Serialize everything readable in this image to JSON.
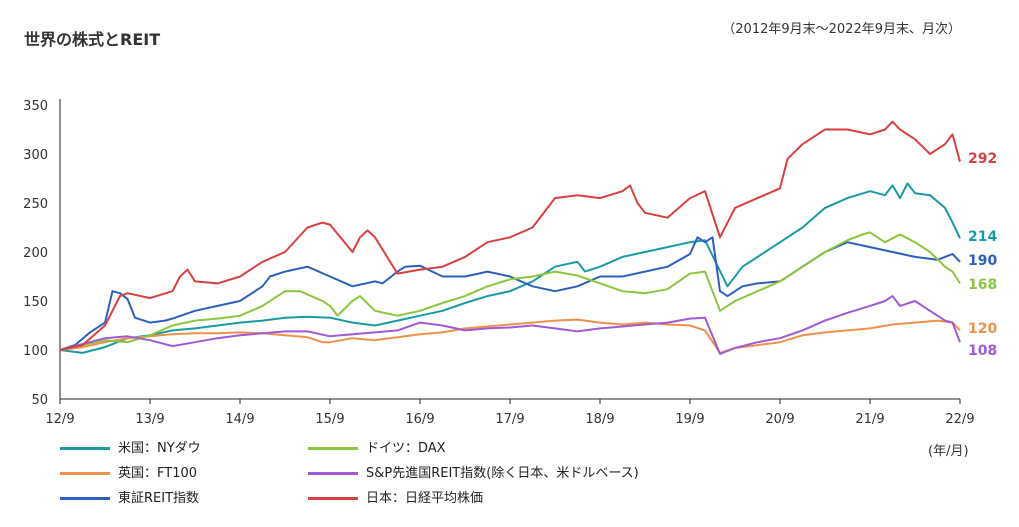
{
  "header": {
    "title": "世界の株式とREIT",
    "period": "（2012年9月末～2022年9月末、月次）"
  },
  "unit_label": "(年/月)",
  "chart_data": {
    "type": "line",
    "title": "世界の株式とREIT",
    "xlabel": "(年/月)",
    "ylabel": "",
    "ylim": [
      50,
      350
    ],
    "yticks": [
      50,
      100,
      150,
      200,
      250,
      300,
      350
    ],
    "xticks": [
      "12/9",
      "13/9",
      "14/9",
      "15/9",
      "16/9",
      "17/9",
      "18/9",
      "19/9",
      "20/9",
      "21/9",
      "22/9"
    ],
    "x_start": "2012-09",
    "x_end": "2022-09",
    "grid": false,
    "legend": "bottom",
    "series": [
      {
        "name": "米国：NYダウ",
        "color": "#1a9aa5",
        "end_label": "214",
        "points": [
          [
            0,
            100
          ],
          [
            3,
            97
          ],
          [
            6,
            103
          ],
          [
            9,
            112
          ],
          [
            12,
            115
          ],
          [
            15,
            120
          ],
          [
            18,
            122
          ],
          [
            21,
            125
          ],
          [
            24,
            128
          ],
          [
            27,
            130
          ],
          [
            30,
            133
          ],
          [
            33,
            134
          ],
          [
            36,
            133
          ],
          [
            39,
            128
          ],
          [
            42,
            125
          ],
          [
            45,
            130
          ],
          [
            48,
            135
          ],
          [
            51,
            140
          ],
          [
            54,
            148
          ],
          [
            57,
            155
          ],
          [
            60,
            160
          ],
          [
            63,
            170
          ],
          [
            66,
            185
          ],
          [
            69,
            190
          ],
          [
            70,
            180
          ],
          [
            72,
            185
          ],
          [
            75,
            195
          ],
          [
            78,
            200
          ],
          [
            81,
            205
          ],
          [
            84,
            210
          ],
          [
            86,
            212
          ],
          [
            89,
            165
          ],
          [
            91,
            185
          ],
          [
            93,
            195
          ],
          [
            96,
            210
          ],
          [
            99,
            225
          ],
          [
            102,
            245
          ],
          [
            105,
            255
          ],
          [
            108,
            262
          ],
          [
            110,
            258
          ],
          [
            111,
            268
          ],
          [
            112,
            255
          ],
          [
            113,
            270
          ],
          [
            114,
            260
          ],
          [
            116,
            258
          ],
          [
            118,
            245
          ],
          [
            119,
            230
          ],
          [
            120,
            214
          ]
        ]
      },
      {
        "name": "英国：FT100",
        "color": "#f0904a",
        "end_label": "120",
        "points": [
          [
            0,
            100
          ],
          [
            3,
            103
          ],
          [
            6,
            108
          ],
          [
            9,
            112
          ],
          [
            12,
            114
          ],
          [
            15,
            116
          ],
          [
            18,
            117
          ],
          [
            21,
            117
          ],
          [
            24,
            118
          ],
          [
            27,
            117
          ],
          [
            30,
            115
          ],
          [
            33,
            113
          ],
          [
            35,
            108
          ],
          [
            36,
            108
          ],
          [
            39,
            112
          ],
          [
            42,
            110
          ],
          [
            45,
            113
          ],
          [
            48,
            116
          ],
          [
            51,
            118
          ],
          [
            54,
            122
          ],
          [
            57,
            124
          ],
          [
            60,
            126
          ],
          [
            63,
            128
          ],
          [
            66,
            130
          ],
          [
            69,
            131
          ],
          [
            72,
            128
          ],
          [
            75,
            126
          ],
          [
            78,
            128
          ],
          [
            81,
            126
          ],
          [
            84,
            125
          ],
          [
            86,
            120
          ],
          [
            88,
            97
          ],
          [
            90,
            102
          ],
          [
            93,
            105
          ],
          [
            96,
            108
          ],
          [
            99,
            115
          ],
          [
            102,
            118
          ],
          [
            105,
            120
          ],
          [
            108,
            122
          ],
          [
            111,
            126
          ],
          [
            114,
            128
          ],
          [
            117,
            130
          ],
          [
            119,
            128
          ],
          [
            120,
            120
          ]
        ]
      },
      {
        "name": "東証REIT指数",
        "color": "#2e5fbd",
        "end_label": "190",
        "points": [
          [
            0,
            100
          ],
          [
            2,
            105
          ],
          [
            4,
            118
          ],
          [
            6,
            128
          ],
          [
            7,
            160
          ],
          [
            8,
            158
          ],
          [
            9,
            152
          ],
          [
            10,
            133
          ],
          [
            12,
            128
          ],
          [
            14,
            130
          ],
          [
            15,
            132
          ],
          [
            18,
            140
          ],
          [
            21,
            145
          ],
          [
            24,
            150
          ],
          [
            27,
            165
          ],
          [
            28,
            175
          ],
          [
            30,
            180
          ],
          [
            33,
            185
          ],
          [
            36,
            175
          ],
          [
            39,
            165
          ],
          [
            42,
            170
          ],
          [
            43,
            168
          ],
          [
            45,
            180
          ],
          [
            46,
            185
          ],
          [
            48,
            186
          ],
          [
            51,
            175
          ],
          [
            54,
            175
          ],
          [
            57,
            180
          ],
          [
            60,
            175
          ],
          [
            63,
            165
          ],
          [
            66,
            160
          ],
          [
            69,
            165
          ],
          [
            72,
            175
          ],
          [
            75,
            175
          ],
          [
            78,
            180
          ],
          [
            81,
            185
          ],
          [
            84,
            198
          ],
          [
            85,
            215
          ],
          [
            86,
            210
          ],
          [
            87,
            215
          ],
          [
            88,
            160
          ],
          [
            89,
            155
          ],
          [
            91,
            165
          ],
          [
            93,
            168
          ],
          [
            96,
            170
          ],
          [
            99,
            185
          ],
          [
            102,
            200
          ],
          [
            105,
            210
          ],
          [
            108,
            205
          ],
          [
            111,
            200
          ],
          [
            114,
            195
          ],
          [
            117,
            192
          ],
          [
            119,
            198
          ],
          [
            120,
            190
          ]
        ]
      },
      {
        "name": "ドイツ：DAX",
        "color": "#8cc63f",
        "end_label": "168",
        "points": [
          [
            0,
            100
          ],
          [
            3,
            105
          ],
          [
            6,
            110
          ],
          [
            9,
            108
          ],
          [
            12,
            115
          ],
          [
            15,
            125
          ],
          [
            18,
            130
          ],
          [
            21,
            132
          ],
          [
            24,
            135
          ],
          [
            27,
            145
          ],
          [
            29,
            155
          ],
          [
            30,
            160
          ],
          [
            32,
            160
          ],
          [
            35,
            150
          ],
          [
            36,
            145
          ],
          [
            37,
            135
          ],
          [
            39,
            150
          ],
          [
            40,
            155
          ],
          [
            42,
            140
          ],
          [
            45,
            135
          ],
          [
            48,
            140
          ],
          [
            51,
            148
          ],
          [
            54,
            155
          ],
          [
            57,
            165
          ],
          [
            60,
            172
          ],
          [
            63,
            175
          ],
          [
            66,
            180
          ],
          [
            69,
            176
          ],
          [
            72,
            168
          ],
          [
            75,
            160
          ],
          [
            78,
            158
          ],
          [
            81,
            162
          ],
          [
            84,
            178
          ],
          [
            86,
            180
          ],
          [
            88,
            140
          ],
          [
            90,
            150
          ],
          [
            93,
            160
          ],
          [
            96,
            170
          ],
          [
            99,
            185
          ],
          [
            102,
            200
          ],
          [
            105,
            212
          ],
          [
            107,
            218
          ],
          [
            108,
            220
          ],
          [
            110,
            210
          ],
          [
            112,
            218
          ],
          [
            114,
            210
          ],
          [
            116,
            200
          ],
          [
            118,
            185
          ],
          [
            119,
            180
          ],
          [
            120,
            168
          ]
        ]
      },
      {
        "name": "S&P先進国REIT指数(除く日本、米ドルベース)",
        "color": "#a05ad6",
        "end_label": "108",
        "points": [
          [
            0,
            100
          ],
          [
            3,
            106
          ],
          [
            6,
            112
          ],
          [
            9,
            114
          ],
          [
            12,
            110
          ],
          [
            15,
            104
          ],
          [
            18,
            108
          ],
          [
            21,
            112
          ],
          [
            24,
            115
          ],
          [
            27,
            117
          ],
          [
            30,
            119
          ],
          [
            33,
            119
          ],
          [
            36,
            114
          ],
          [
            39,
            116
          ],
          [
            42,
            118
          ],
          [
            45,
            120
          ],
          [
            48,
            128
          ],
          [
            51,
            125
          ],
          [
            54,
            120
          ],
          [
            57,
            122
          ],
          [
            60,
            123
          ],
          [
            63,
            125
          ],
          [
            66,
            122
          ],
          [
            69,
            119
          ],
          [
            72,
            122
          ],
          [
            75,
            124
          ],
          [
            78,
            126
          ],
          [
            81,
            128
          ],
          [
            84,
            132
          ],
          [
            86,
            133
          ],
          [
            88,
            96
          ],
          [
            90,
            102
          ],
          [
            93,
            108
          ],
          [
            96,
            112
          ],
          [
            99,
            120
          ],
          [
            102,
            130
          ],
          [
            105,
            138
          ],
          [
            108,
            145
          ],
          [
            110,
            150
          ],
          [
            111,
            155
          ],
          [
            112,
            145
          ],
          [
            114,
            150
          ],
          [
            116,
            140
          ],
          [
            118,
            130
          ],
          [
            119,
            128
          ],
          [
            120,
            108
          ]
        ]
      },
      {
        "name": "日本：日経平均株価",
        "color": "#d94040",
        "end_label": "292",
        "points": [
          [
            0,
            100
          ],
          [
            3,
            105
          ],
          [
            6,
            125
          ],
          [
            8,
            155
          ],
          [
            9,
            158
          ],
          [
            12,
            153
          ],
          [
            15,
            160
          ],
          [
            16,
            175
          ],
          [
            17,
            182
          ],
          [
            18,
            170
          ],
          [
            21,
            168
          ],
          [
            24,
            175
          ],
          [
            27,
            190
          ],
          [
            30,
            200
          ],
          [
            33,
            225
          ],
          [
            35,
            230
          ],
          [
            36,
            228
          ],
          [
            39,
            200
          ],
          [
            40,
            215
          ],
          [
            41,
            222
          ],
          [
            42,
            215
          ],
          [
            45,
            178
          ],
          [
            48,
            182
          ],
          [
            51,
            185
          ],
          [
            54,
            195
          ],
          [
            57,
            210
          ],
          [
            60,
            215
          ],
          [
            63,
            225
          ],
          [
            66,
            255
          ],
          [
            69,
            258
          ],
          [
            72,
            255
          ],
          [
            75,
            262
          ],
          [
            76,
            268
          ],
          [
            77,
            250
          ],
          [
            78,
            240
          ],
          [
            81,
            235
          ],
          [
            84,
            255
          ],
          [
            86,
            262
          ],
          [
            88,
            215
          ],
          [
            90,
            245
          ],
          [
            93,
            255
          ],
          [
            96,
            265
          ],
          [
            97,
            295
          ],
          [
            99,
            310
          ],
          [
            102,
            325
          ],
          [
            105,
            325
          ],
          [
            108,
            320
          ],
          [
            110,
            325
          ],
          [
            111,
            333
          ],
          [
            112,
            325
          ],
          [
            114,
            315
          ],
          [
            116,
            300
          ],
          [
            117,
            305
          ],
          [
            118,
            310
          ],
          [
            119,
            320
          ],
          [
            120,
            292
          ]
        ]
      }
    ]
  }
}
